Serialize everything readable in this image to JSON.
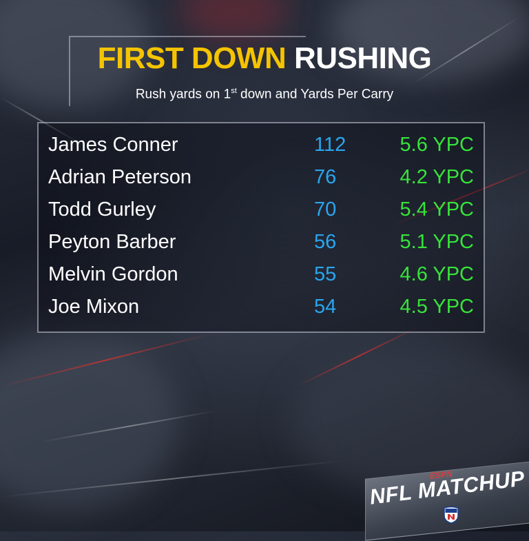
{
  "header": {
    "title_highlight": "FIRST DOWN",
    "title_rest": "RUSHING",
    "subtitle_before": "Rush yards on 1",
    "subtitle_sup": "st",
    "subtitle_after": " down and Yards Per Carry"
  },
  "rows": [
    {
      "name": "James Conner",
      "yards": "112",
      "ypc": "5.6 YPC"
    },
    {
      "name": "Adrian Peterson",
      "yards": "76",
      "ypc": "4.2 YPC"
    },
    {
      "name": "Todd Gurley",
      "yards": "70",
      "ypc": "5.4 YPC"
    },
    {
      "name": "Peyton Barber",
      "yards": "56",
      "ypc": "5.1 YPC"
    },
    {
      "name": "Melvin Gordon",
      "yards": "55",
      "ypc": "4.6 YPC"
    },
    {
      "name": "Joe Mixon",
      "yards": "54",
      "ypc": "4.5 YPC"
    }
  ],
  "logo": {
    "network": "ESPN",
    "show": "NFL MATCHUP",
    "badge_icon": "nfl-shield-icon"
  },
  "colors": {
    "title_highlight": "#f5c400",
    "yards": "#2aa6ee",
    "ypc": "#36e43a"
  }
}
